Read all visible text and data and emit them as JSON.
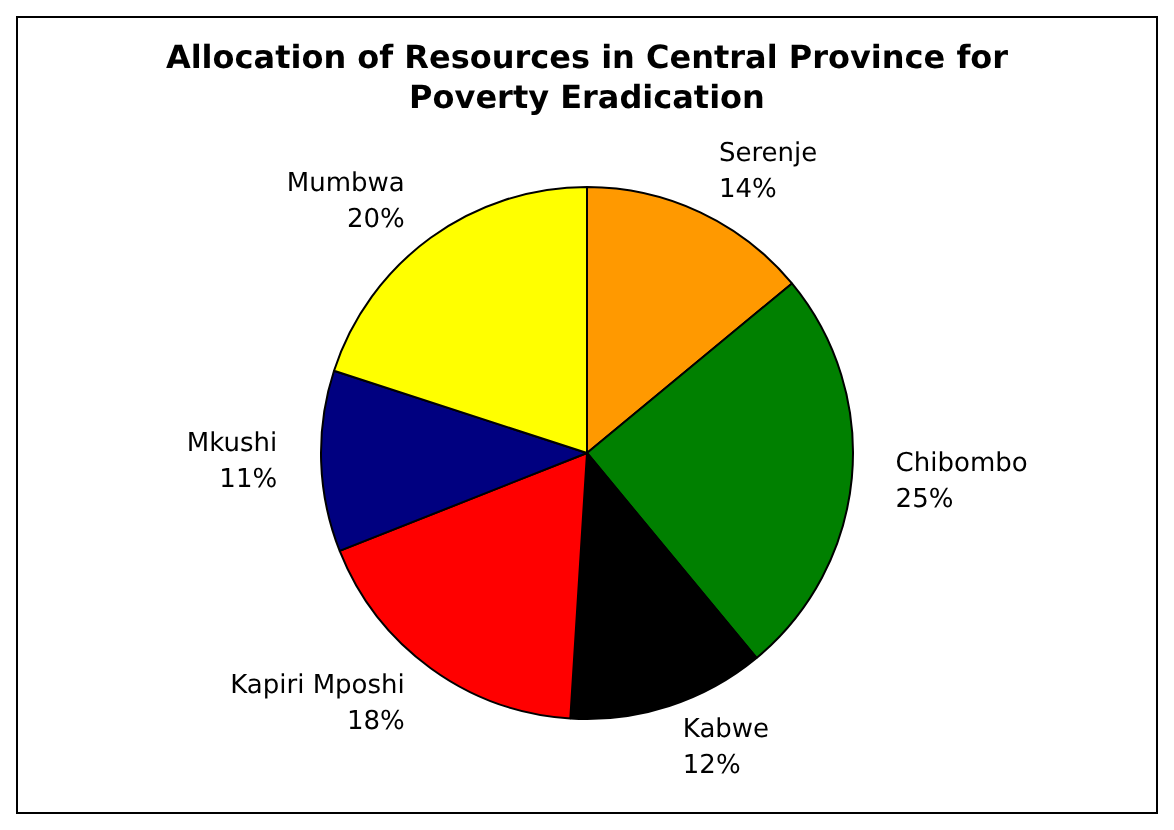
{
  "chart_data": {
    "type": "pie",
    "title": "Allocation of Resources in Central Province for Poverty Eradication",
    "categories": [
      "Serenje",
      "Chibombo",
      "Kabwe",
      "Kapiri Mposhi",
      "Mkushi",
      "Mumbwa"
    ],
    "values": [
      14,
      25,
      12,
      18,
      11,
      20
    ],
    "value_labels": [
      "14%",
      "25%",
      "12%",
      "18%",
      "11%",
      "20%"
    ],
    "colors": [
      "#ff9900",
      "#008000",
      "#000000",
      "#ff0000",
      "#000080",
      "#ffff00"
    ],
    "legend": false
  }
}
